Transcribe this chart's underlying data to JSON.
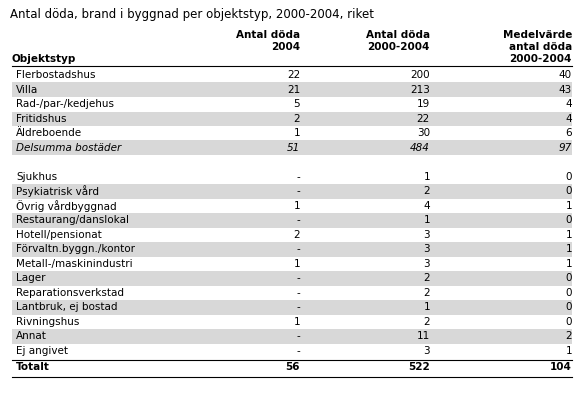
{
  "title": "Antal döda, brand i byggnad per objektstyp, 2000-2004, riket",
  "col_headers_line1": [
    "",
    "Antal döda",
    "Antal döda",
    "Medelvärde"
  ],
  "col_headers_line2": [
    "",
    "2004",
    "2000-2004",
    "antal döda"
  ],
  "col_headers_line3": [
    "Objektstyp",
    "",
    "",
    "2000-2004"
  ],
  "rows": [
    {
      "label": "Flerbostadshus",
      "v1": "22",
      "v2": "200",
      "v3": "40",
      "italic": false,
      "shaded": false
    },
    {
      "label": "Villa",
      "v1": "21",
      "v2": "213",
      "v3": "43",
      "italic": false,
      "shaded": true
    },
    {
      "label": "Rad-/par-/kedjehus",
      "v1": "5",
      "v2": "19",
      "v3": "4",
      "italic": false,
      "shaded": false
    },
    {
      "label": "Fritidshus",
      "v1": "2",
      "v2": "22",
      "v3": "4",
      "italic": false,
      "shaded": true
    },
    {
      "label": "Äldreboende",
      "v1": "1",
      "v2": "30",
      "v3": "6",
      "italic": false,
      "shaded": false
    },
    {
      "label": "Delsumma bostäder",
      "v1": "51",
      "v2": "484",
      "v3": "97",
      "italic": true,
      "shaded": true
    },
    {
      "label": "",
      "v1": "",
      "v2": "",
      "v3": "",
      "italic": false,
      "shaded": false
    },
    {
      "label": "Sjukhus",
      "v1": "-",
      "v2": "1",
      "v3": "0",
      "italic": false,
      "shaded": false
    },
    {
      "label": "Psykiatrisk vård",
      "v1": "-",
      "v2": "2",
      "v3": "0",
      "italic": false,
      "shaded": true
    },
    {
      "label": "Övrig vårdbyggnad",
      "v1": "1",
      "v2": "4",
      "v3": "1",
      "italic": false,
      "shaded": false
    },
    {
      "label": "Restaurang/danslokal",
      "v1": "-",
      "v2": "1",
      "v3": "0",
      "italic": false,
      "shaded": true
    },
    {
      "label": "Hotell/pensionat",
      "v1": "2",
      "v2": "3",
      "v3": "1",
      "italic": false,
      "shaded": false
    },
    {
      "label": "Förvaltn.byggn./kontor",
      "v1": "-",
      "v2": "3",
      "v3": "1",
      "italic": false,
      "shaded": true
    },
    {
      "label": "Metall-/maskinindustri",
      "v1": "1",
      "v2": "3",
      "v3": "1",
      "italic": false,
      "shaded": false
    },
    {
      "label": "Lager",
      "v1": "-",
      "v2": "2",
      "v3": "0",
      "italic": false,
      "shaded": true
    },
    {
      "label": "Reparationsverkstad",
      "v1": "-",
      "v2": "2",
      "v3": "0",
      "italic": false,
      "shaded": false
    },
    {
      "label": "Lantbruk, ej bostad",
      "v1": "-",
      "v2": "1",
      "v3": "0",
      "italic": false,
      "shaded": true
    },
    {
      "label": "Rivningshus",
      "v1": "1",
      "v2": "2",
      "v3": "0",
      "italic": false,
      "shaded": false
    },
    {
      "label": "Annat",
      "v1": "-",
      "v2": "11",
      "v3": "2",
      "italic": false,
      "shaded": true
    },
    {
      "label": "Ej angivet",
      "v1": "-",
      "v2": "3",
      "v3": "1",
      "italic": false,
      "shaded": false
    }
  ],
  "total_row": {
    "label": "Totalt",
    "v1": "56",
    "v2": "522",
    "v3": "104"
  },
  "bg_color": "#ffffff",
  "shaded_color": "#d8d8d8",
  "title_fontsize": 8.5,
  "header_fontsize": 7.5,
  "cell_fontsize": 7.5
}
